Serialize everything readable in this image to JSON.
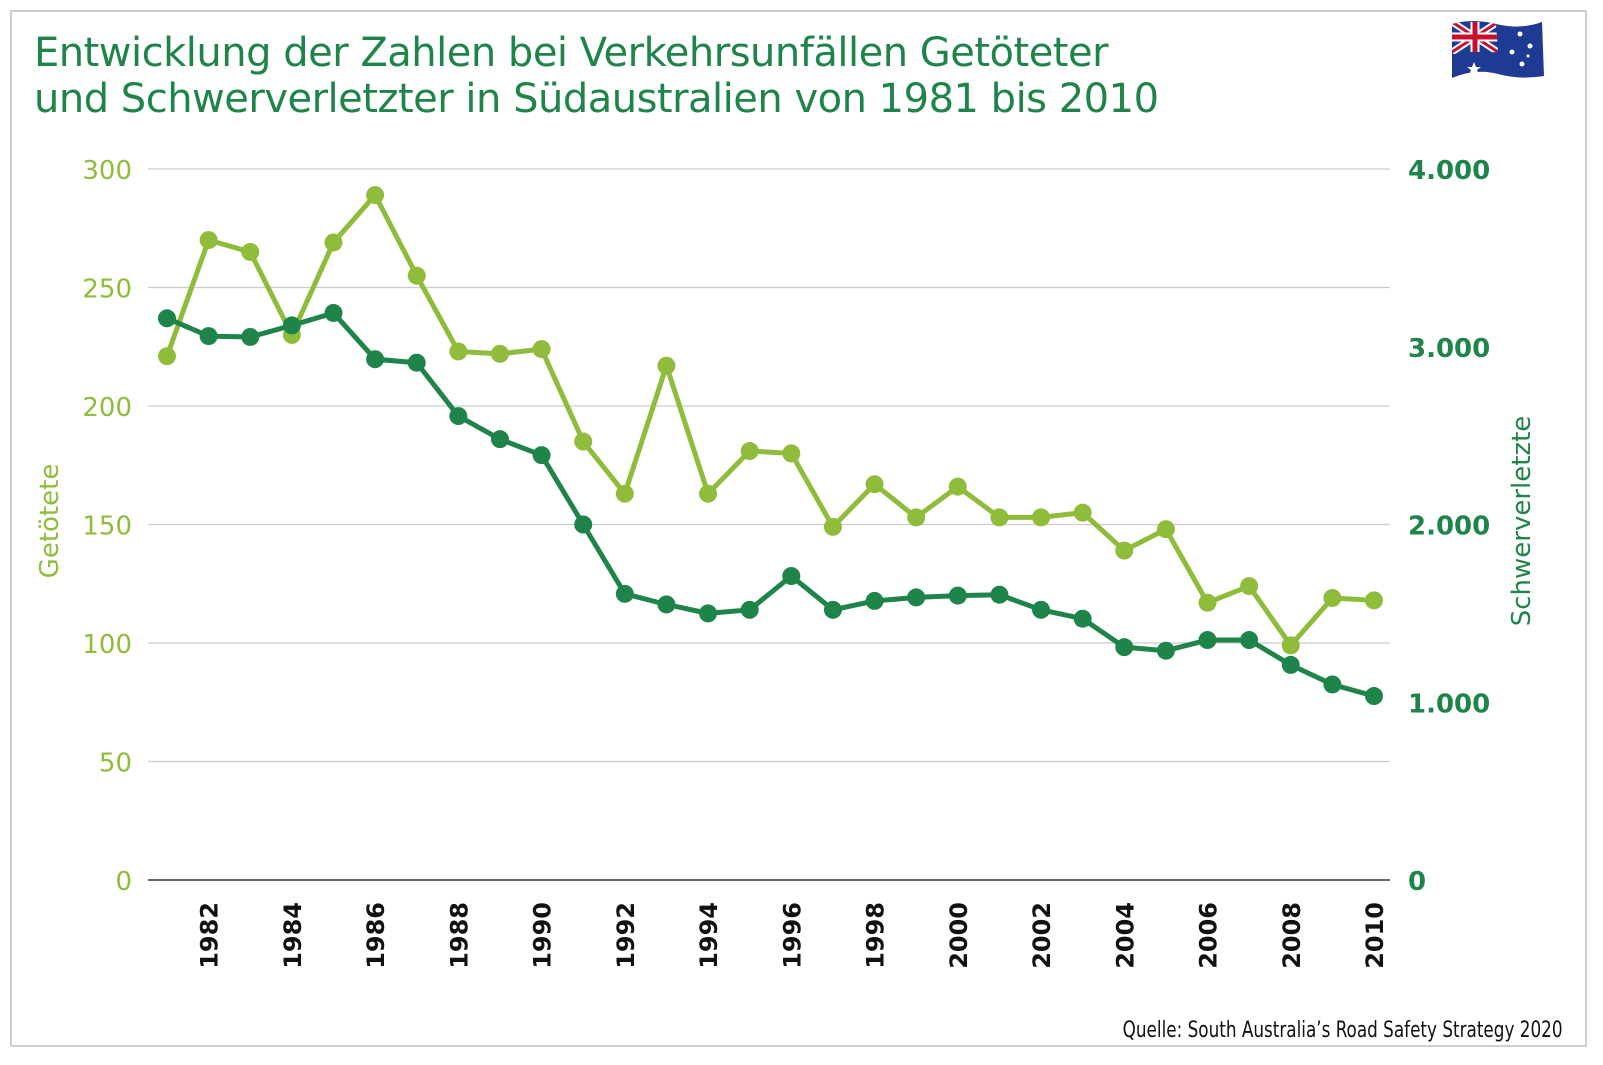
{
  "title_line1": "Entwicklung der Zahlen bei Verkehrsunfällen Getöteter",
  "title_line2": "und Schwerverletzter in Südaustralien von 1981 bis 2010",
  "source": "Quelle: South Australia’s Road Safety Strategy 2020",
  "flag_icon": "australia-flag-icon",
  "chart_data": {
    "type": "line",
    "x": [
      1981,
      1982,
      1983,
      1984,
      1985,
      1986,
      1987,
      1988,
      1989,
      1990,
      1991,
      1992,
      1993,
      1994,
      1995,
      1996,
      1997,
      1998,
      1999,
      2000,
      2001,
      2002,
      2003,
      2004,
      2005,
      2006,
      2007,
      2008,
      2009,
      2010
    ],
    "x_tick_labels": [
      "1982",
      "1984",
      "1986",
      "1988",
      "1990",
      "1992",
      "1994",
      "1996",
      "1998",
      "2000",
      "2002",
      "2004",
      "2006",
      "2008",
      "2010"
    ],
    "ylabel_left": "Getötete",
    "ylabel_right": "Schwerverletzte",
    "ylim_left": [
      0,
      300
    ],
    "ylim_right": [
      0,
      4000
    ],
    "y_ticks_left": [
      "0",
      "50",
      "100",
      "150",
      "200",
      "250",
      "300"
    ],
    "y_ticks_right": [
      "0",
      "1.000",
      "2.000",
      "3.000",
      "4.000"
    ],
    "grid": true,
    "series": [
      {
        "name": "Getötete",
        "axis": "left",
        "color": "#8fbc3a",
        "values": [
          221,
          270,
          265,
          230,
          269,
          289,
          255,
          223,
          222,
          224,
          185,
          163,
          217,
          163,
          181,
          180,
          149,
          167,
          153,
          166,
          153,
          153,
          155,
          139,
          148,
          117,
          124,
          99,
          119,
          118
        ]
      },
      {
        "name": "Schwerverletzte",
        "axis": "right",
        "color": "#1e8449",
        "values": [
          3160,
          3060,
          3055,
          3120,
          3190,
          2930,
          2910,
          2610,
          2480,
          2390,
          2000,
          1610,
          1550,
          1500,
          1520,
          1710,
          1520,
          1570,
          1590,
          1600,
          1605,
          1520,
          1470,
          1310,
          1290,
          1350,
          1350,
          1210,
          1100,
          1035
        ]
      }
    ]
  }
}
